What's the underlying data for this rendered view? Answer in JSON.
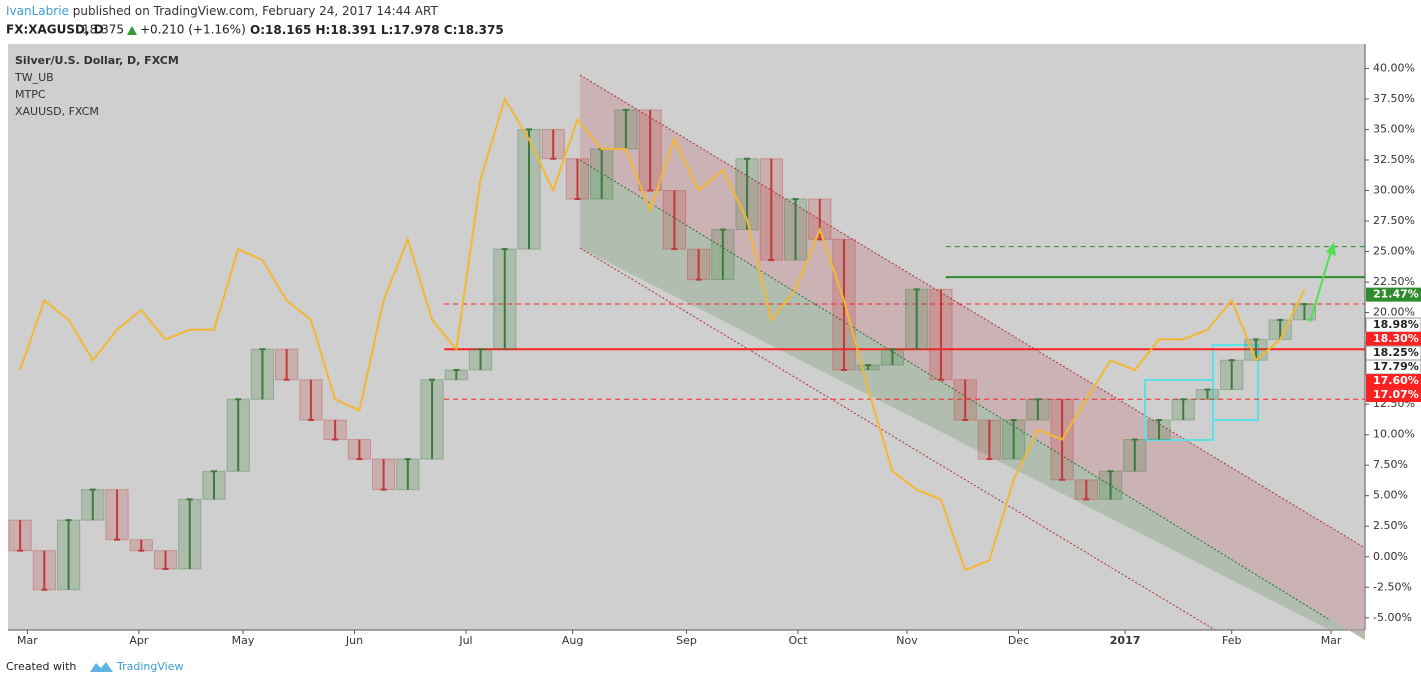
{
  "header": {
    "author": "IvanLabrie",
    "published": "published on TradingView.com, February 24, 2017 14:44 ART",
    "symbol": "FX:XAGUSD, D",
    "last": "18.375",
    "change": "+0.210 (+1.16%)",
    "open": "O:18.165",
    "high": "H:18.391",
    "low": "L:17.978",
    "close": "C:18.375"
  },
  "footer": {
    "created": "Created with",
    "brand": "TradingView"
  },
  "chart_data": {
    "type": "candlestick",
    "legend": [
      "Silver/U.S. Dollar, D, FXCM",
      "TW_UB",
      "MTPC",
      "XAUUSD, FXCM"
    ],
    "x": [
      0.5,
      1.5,
      2.5,
      3.5,
      4.5,
      5.5,
      6.5,
      7.5,
      8.5,
      9.5,
      10.5,
      11.5,
      12.5,
      13.5,
      14.5,
      15.5,
      16.5,
      17.5,
      18.5,
      19.5,
      20.5,
      21.5,
      22.5,
      23.5,
      24.5,
      25.5,
      26.5,
      27.5,
      28.5,
      29.5,
      30.5,
      31.5,
      32.5,
      33.5,
      34.5,
      35.5,
      36.5,
      37.5,
      38.5,
      39.5,
      40.5,
      41.5,
      42.5,
      43.5,
      44.5,
      45.5,
      46.5,
      47.5,
      48.5,
      49.5,
      50.5,
      51.5,
      52.5,
      53.5
    ],
    "candles": {
      "open": [
        3,
        0.5,
        -2.7,
        3,
        5.5,
        1.4,
        0.5,
        -1,
        4.7,
        7,
        12.9,
        17,
        14.5,
        11.2,
        9.6,
        8,
        5.5,
        8,
        14.5,
        15.3,
        17,
        25.2,
        35,
        32.6,
        29.3,
        33.4,
        36.6,
        30,
        25.2,
        22.7,
        26.8,
        32.6,
        24.3,
        29.3,
        26,
        15.3,
        15.7,
        17,
        21.9,
        14.5,
        11.2,
        8,
        11.2,
        12.9,
        6.3,
        4.7,
        7,
        9.6,
        11.2,
        12.9,
        13.7,
        16.1,
        17.8,
        19.4
      ],
      "close": [
        0.5,
        -2.7,
        3,
        5.5,
        1.4,
        0.5,
        -1,
        4.7,
        7,
        12.9,
        17,
        14.5,
        11.2,
        9.6,
        8,
        5.5,
        8,
        14.5,
        15.3,
        17,
        25.2,
        35,
        32.6,
        29.3,
        33.4,
        36.6,
        30,
        25.2,
        22.7,
        26.8,
        32.6,
        24.3,
        29.3,
        26,
        15.3,
        15.7,
        17,
        21.9,
        14.5,
        11.2,
        8,
        11.2,
        12.9,
        6.3,
        4.7,
        7,
        9.6,
        11.2,
        12.9,
        13.7,
        16.1,
        17.8,
        19.4,
        20.7
      ],
      "up_color": "#3d7a3d",
      "down_color": "#c03a3a"
    },
    "series": [
      {
        "name": "XAUUSD, FXCM",
        "color": "#f4b731",
        "values": [
          15.3,
          21,
          19.4,
          16.1,
          18.6,
          20.2,
          17.8,
          18.6,
          18.6,
          25.2,
          24.3,
          21,
          19.4,
          12.9,
          12,
          21,
          26,
          19.4,
          17,
          30.9,
          37.5,
          34.2,
          30,
          35.8,
          33.4,
          33.4,
          28.4,
          34.2,
          30,
          31.7,
          27.6,
          19.4,
          21.9,
          26.8,
          21,
          13.7,
          7,
          5.5,
          4.7,
          -1.1,
          -0.3,
          6.3,
          10.4,
          9.6,
          12.9,
          16.1,
          15.3,
          17.8,
          17.8,
          18.6,
          21,
          16.1,
          17.8,
          21.9
        ]
      }
    ],
    "levels": [
      {
        "value": 17.0,
        "color": "#ff2020",
        "style": "solid",
        "start": 18
      },
      {
        "value": 20.7,
        "color": "#ff2020",
        "style": "dashed",
        "start": 18
      },
      {
        "value": 12.9,
        "color": "#ff2020",
        "style": "dashed",
        "start": 18
      },
      {
        "value": 22.9,
        "color": "#2e8b2e",
        "style": "solid",
        "start": 38.7
      },
      {
        "value": 25.4,
        "color": "#2e8b2e",
        "style": "dashed",
        "start": 38.7
      }
    ],
    "price_labels": [
      {
        "value": 21.47,
        "label": "21.47%",
        "color": "#2e8b2e"
      },
      {
        "value": 18.98,
        "label": "18.98%",
        "color": "#ffffff"
      },
      {
        "value": 18.25,
        "label": "18.25%",
        "color": "#ffffff"
      },
      {
        "value": 18.3,
        "label": "18.30%",
        "color": "#ff2020"
      },
      {
        "value": 17.79,
        "label": "17.79%",
        "color": "#ffffff"
      },
      {
        "value": 17.6,
        "label": "17.60%",
        "color": "#ff2020"
      },
      {
        "value": 17.07,
        "label": "17.07%",
        "color": "#ff2020"
      }
    ],
    "xlim": [
      0,
      56
    ],
    "xticks": [
      {
        "value": 0.8,
        "label": "Mar"
      },
      {
        "value": 5.4,
        "label": "Apr"
      },
      {
        "value": 9.7,
        "label": "May"
      },
      {
        "value": 14.3,
        "label": "Jun"
      },
      {
        "value": 18.9,
        "label": "Jul"
      },
      {
        "value": 23.3,
        "label": "Aug"
      },
      {
        "value": 28.0,
        "label": "Sep"
      },
      {
        "value": 32.6,
        "label": "Oct"
      },
      {
        "value": 37.1,
        "label": "Nov"
      },
      {
        "value": 41.7,
        "label": "Dec"
      },
      {
        "value": 46.1,
        "label": "2017"
      },
      {
        "value": 50.5,
        "label": "Feb"
      },
      {
        "value": 54.6,
        "label": "Mar"
      }
    ],
    "ylim": [
      -6,
      42
    ],
    "yticks": [
      {
        "value": -5,
        "label": "-5.00%"
      },
      {
        "value": -2.5,
        "label": "-2.50%"
      },
      {
        "value": 0,
        "label": "0.00%"
      },
      {
        "value": 2.5,
        "label": "2.50%"
      },
      {
        "value": 5,
        "label": "5.00%"
      },
      {
        "value": 7.5,
        "label": "7.50%"
      },
      {
        "value": 10,
        "label": "10.00%"
      },
      {
        "value": 12.5,
        "label": "12.50%"
      },
      {
        "value": 15,
        "label": "15.00%"
      },
      {
        "value": 17.5,
        "label": "17.50%"
      },
      {
        "value": 20,
        "label": "20.00%"
      },
      {
        "value": 22.5,
        "label": "22.50%"
      },
      {
        "value": 25,
        "label": "25.00%"
      },
      {
        "value": 27.5,
        "label": "27.50%"
      },
      {
        "value": 30,
        "label": "30.00%"
      },
      {
        "value": 32.5,
        "label": "32.50%"
      },
      {
        "value": 35,
        "label": "35.00%"
      },
      {
        "value": 37.5,
        "label": "37.50%"
      },
      {
        "value": 40,
        "label": "40.00%"
      }
    ],
    "grid": false
  }
}
